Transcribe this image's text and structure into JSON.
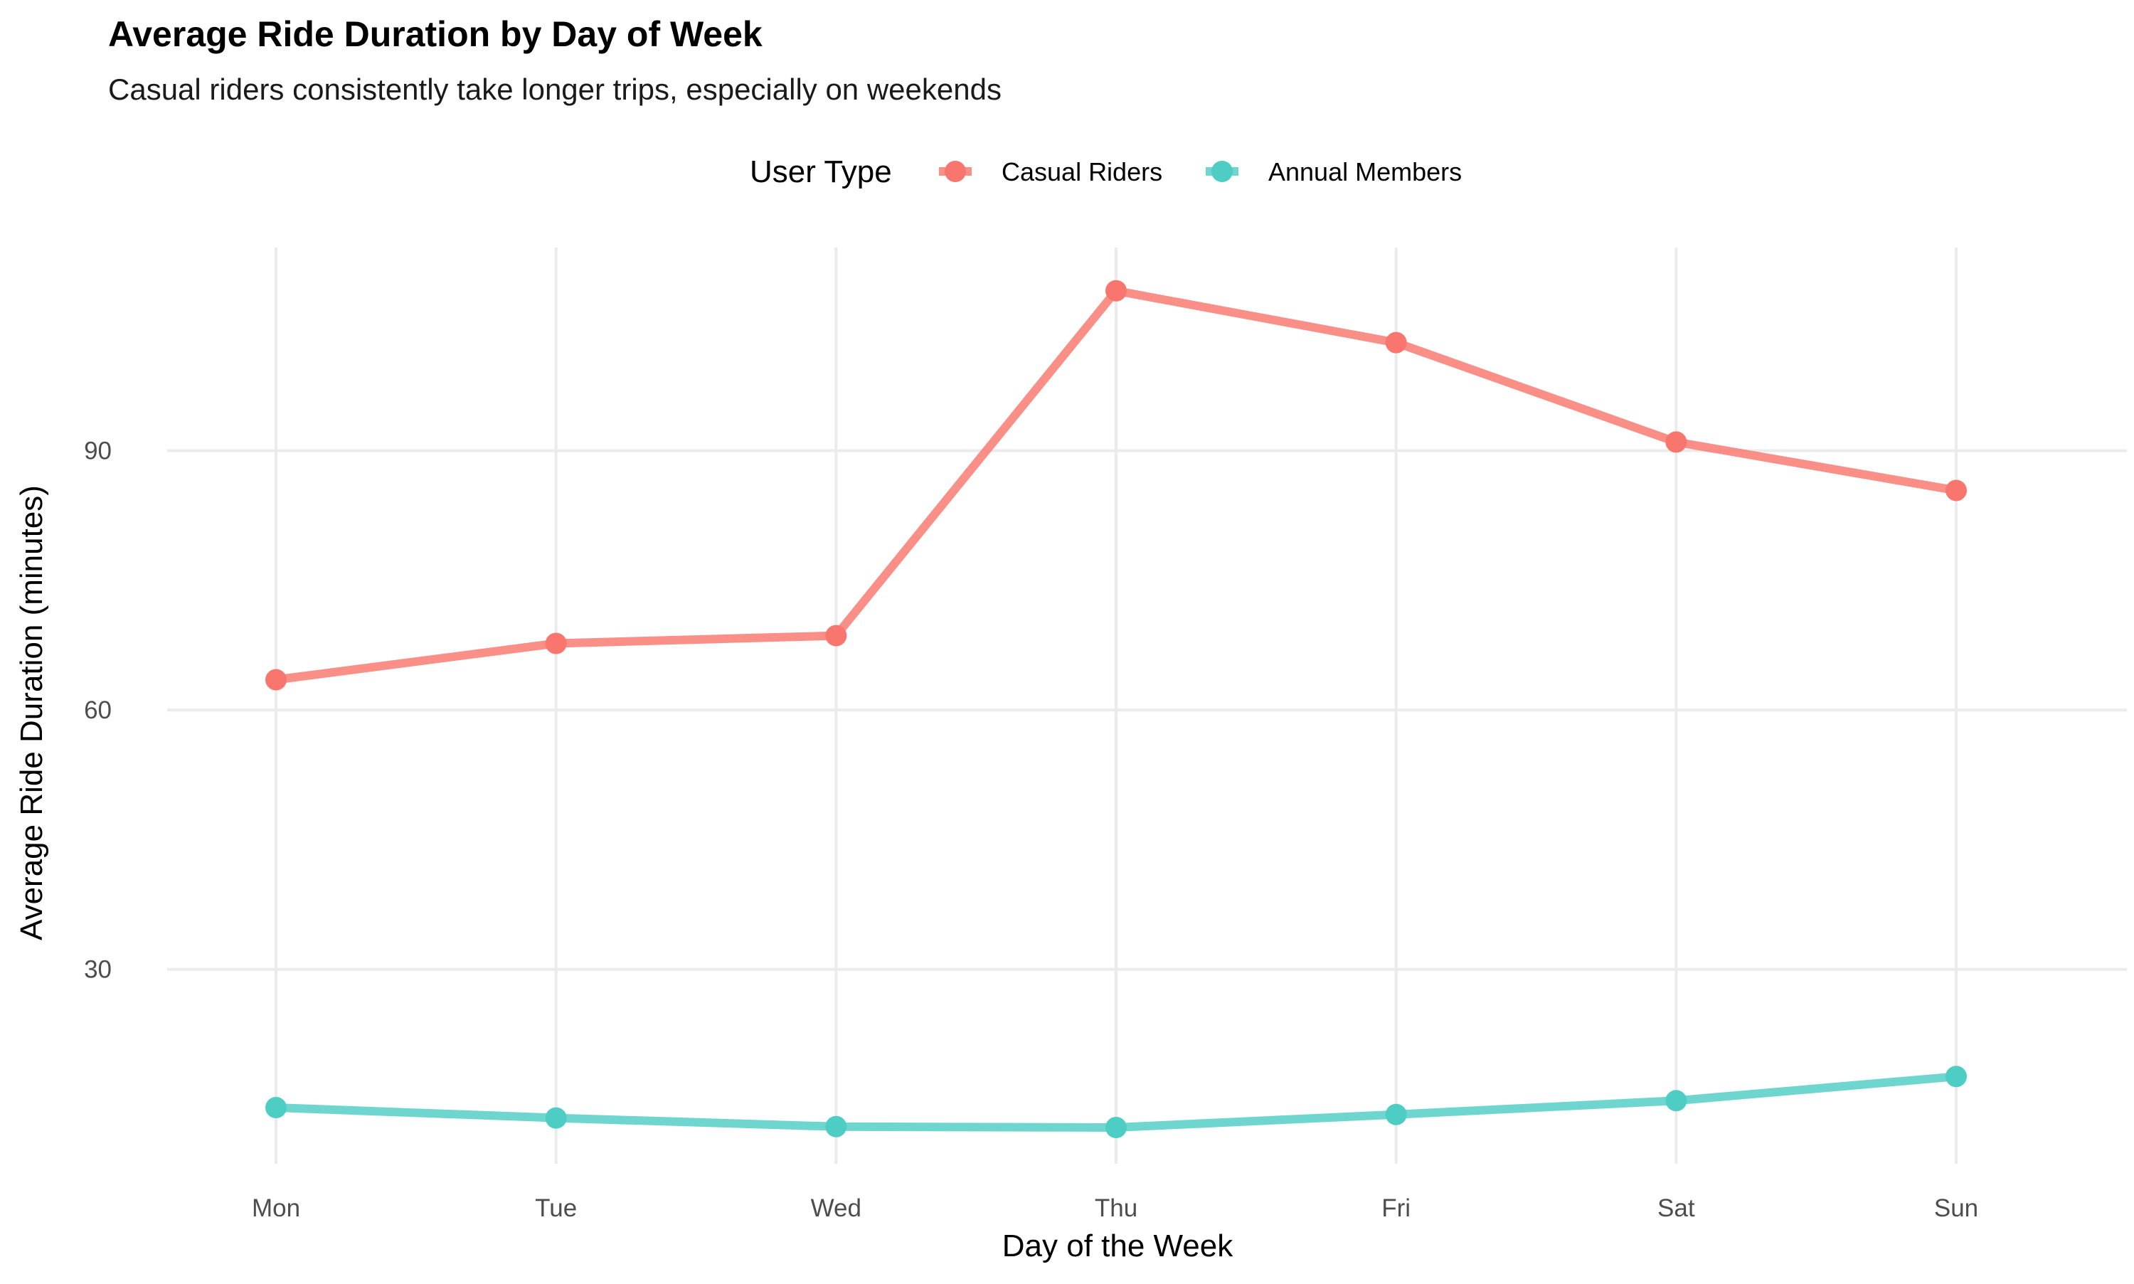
{
  "chart_data": {
    "type": "line",
    "title": "Average Ride Duration by Day of Week",
    "subtitle": "Casual riders consistently take longer trips, especially on weekends",
    "xlabel": "Day of the Week",
    "ylabel": "Average Ride Duration (minutes)",
    "categories": [
      "Mon",
      "Tue",
      "Wed",
      "Thu",
      "Fri",
      "Sat",
      "Sun"
    ],
    "yticks": [
      30,
      60,
      90
    ],
    "ylim": [
      7.5,
      113.5
    ],
    "grid": true,
    "legend": {
      "title": "User Type",
      "position": "top"
    },
    "series": [
      {
        "name": "Casual Riders",
        "color": "#F8766D",
        "values": [
          63.5,
          67.7,
          68.6,
          108.5,
          102.5,
          91.0,
          85.4
        ]
      },
      {
        "name": "Annual Members",
        "color": "#4ECDC4",
        "values": [
          14.0,
          12.8,
          11.8,
          11.7,
          13.2,
          14.8,
          17.6
        ]
      }
    ]
  }
}
